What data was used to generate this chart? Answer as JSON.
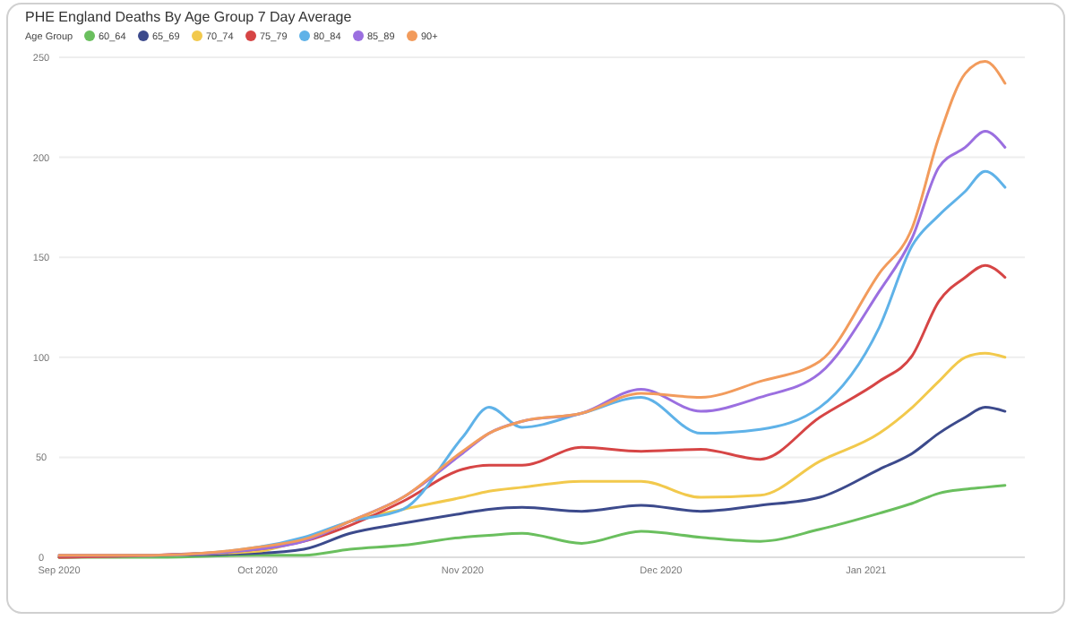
{
  "chart_data": {
    "type": "line",
    "title": "PHE England Deaths By Age Group 7 Day Average",
    "legend_title": "Age Group",
    "legend": "top left",
    "grid": "y",
    "x": [
      "2020-09-01",
      "2020-09-15",
      "2020-10-01",
      "2020-10-08",
      "2020-10-15",
      "2020-10-23",
      "2020-11-01",
      "2020-11-05",
      "2020-11-10",
      "2020-11-19",
      "2020-11-28",
      "2020-12-07",
      "2020-12-16",
      "2020-12-25",
      "2021-01-03",
      "2021-01-08",
      "2021-01-12",
      "2021-01-16",
      "2021-01-19",
      "2021-01-22"
    ],
    "xlim": [
      "2020-09-01",
      "2021-01-25"
    ],
    "xticks": [
      {
        "value": "2020-09-01",
        "label": "Sep 2020"
      },
      {
        "value": "2020-10-01",
        "label": "Oct 2020"
      },
      {
        "value": "2020-11-01",
        "label": "Nov 2020"
      },
      {
        "value": "2020-12-01",
        "label": "Dec 2020"
      },
      {
        "value": "2021-01-01",
        "label": "Jan 2021"
      }
    ],
    "ylim": [
      0,
      250
    ],
    "yticks": [
      0,
      50,
      100,
      150,
      200,
      250
    ],
    "series": [
      {
        "name": "60_64",
        "color": "#6abf5e",
        "values": [
          0,
          0,
          1,
          1,
          4,
          6,
          10,
          11,
          12,
          7,
          13,
          10,
          8,
          14,
          22,
          27,
          32,
          34,
          35,
          36
        ]
      },
      {
        "name": "65_69",
        "color": "#3c4a8c",
        "values": [
          0,
          1,
          2,
          4,
          12,
          17,
          22,
          24,
          25,
          23,
          26,
          23,
          26,
          30,
          44,
          52,
          62,
          70,
          75,
          73
        ]
      },
      {
        "name": "70_74",
        "color": "#f2c94c",
        "values": [
          0,
          1,
          3,
          9,
          18,
          24,
          30,
          33,
          35,
          38,
          38,
          30,
          31,
          48,
          62,
          75,
          88,
          100,
          102,
          100
        ]
      },
      {
        "name": "75_79",
        "color": "#d64545",
        "values": [
          0,
          1,
          4,
          8,
          16,
          28,
          44,
          46,
          46,
          55,
          53,
          54,
          49,
          70,
          88,
          101,
          128,
          140,
          146,
          140
        ]
      },
      {
        "name": "80_84",
        "color": "#5fb2e8",
        "values": [
          1,
          1,
          5,
          10,
          18,
          24,
          60,
          75,
          65,
          72,
          80,
          62,
          64,
          75,
          115,
          156,
          171,
          183,
          193,
          185
        ]
      },
      {
        "name": "85_89",
        "color": "#9b6fe0",
        "values": [
          1,
          1,
          4,
          8,
          18,
          30,
          52,
          62,
          68,
          72,
          84,
          73,
          80,
          92,
          133,
          160,
          195,
          205,
          213,
          205
        ]
      },
      {
        "name": "90+",
        "color": "#f29b5c",
        "values": [
          1,
          1,
          5,
          9,
          18,
          30,
          53,
          62,
          68,
          72,
          82,
          80,
          88,
          98,
          142,
          165,
          210,
          242,
          248,
          237
        ]
      }
    ]
  }
}
